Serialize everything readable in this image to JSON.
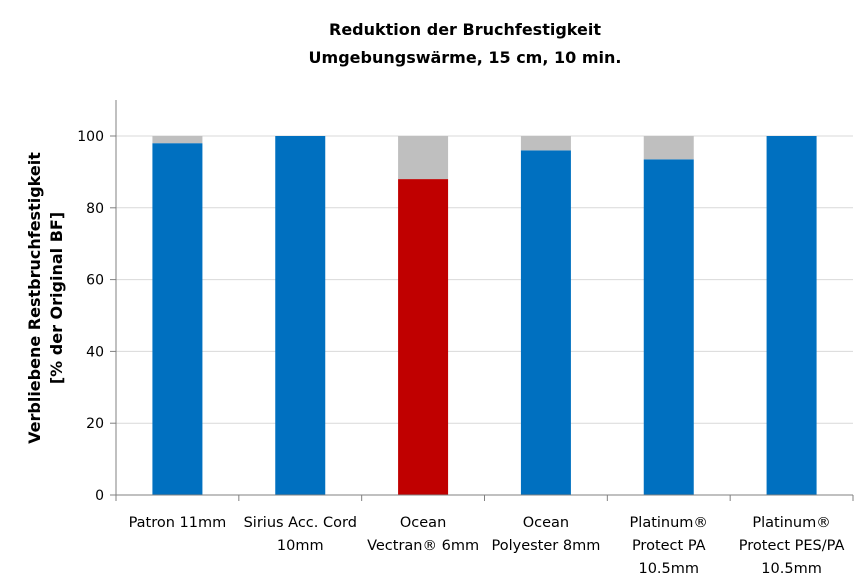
{
  "chart_data": {
    "type": "bar",
    "stacked": true,
    "title": [
      "Reduktion der Bruchfestigkeit",
      "Umgebungswärme, 15 cm, 10 min."
    ],
    "xlabel": "",
    "ylabel": [
      "Verbliebene Restbruchfestigkeit",
      "[% der Original BF]"
    ],
    "ylim": [
      0,
      100
    ],
    "yticks": [
      "0",
      "20",
      "40",
      "60",
      "80",
      "100"
    ],
    "grid": true,
    "legend": "none",
    "categories": [
      [
        "Patron 11mm"
      ],
      [
        "Sirius Acc. Cord",
        "10mm"
      ],
      [
        "Ocean",
        "Vectran® 6mm"
      ],
      [
        "Ocean",
        "Polyester 8mm"
      ],
      [
        "Platinum®",
        "Protect PA",
        "10.5mm"
      ],
      [
        "Platinum®",
        "Protect PES/PA",
        "10.5mm"
      ]
    ],
    "values": [
      98,
      100,
      88,
      96,
      93.5,
      100
    ],
    "reduction": [
      2,
      0,
      12,
      4,
      6.5,
      0
    ],
    "colors": {
      "bar": "#0070C0",
      "highlight": "#C00000",
      "reduction": "#BFBFBF",
      "grid": "#D9D9D9",
      "axis": "#808080"
    },
    "highlight_index": 2
  }
}
